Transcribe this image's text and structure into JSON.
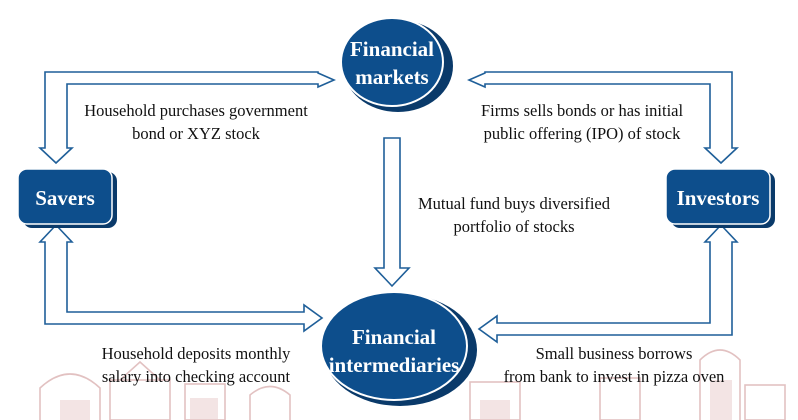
{
  "colors": {
    "node_fill": "#0d4e8c",
    "node_shadow": "#0a3a6a",
    "arrow_fill": "#ffffff",
    "arrow_stroke": "#1f5f99",
    "watermark": "#d6a8a8"
  },
  "nodes": {
    "financial_markets": {
      "line1": "Financial",
      "line2": "markets"
    },
    "financial_intermediaries": {
      "line1": "Financial",
      "line2": "intermediaries"
    },
    "savers": {
      "label": "Savers"
    },
    "investors": {
      "label": "Investors"
    }
  },
  "edges": {
    "savers_to_markets": {
      "line1": "Household purchases government",
      "line2": "bond or XYZ stock"
    },
    "markets_to_investors": {
      "line1": "Firms sells bonds or has initial",
      "line2": "public offering (IPO) of stock"
    },
    "markets_to_intermediaries": {
      "line1": "Mutual fund  buys diversified",
      "line2": "portfolio of stocks"
    },
    "savers_to_intermediaries": {
      "line1": "Household deposits monthly",
      "line2": "salary into checking account"
    },
    "intermediaries_to_investors": {
      "line1": "Small business borrows",
      "line2": "from bank to invest in pizza oven"
    }
  }
}
